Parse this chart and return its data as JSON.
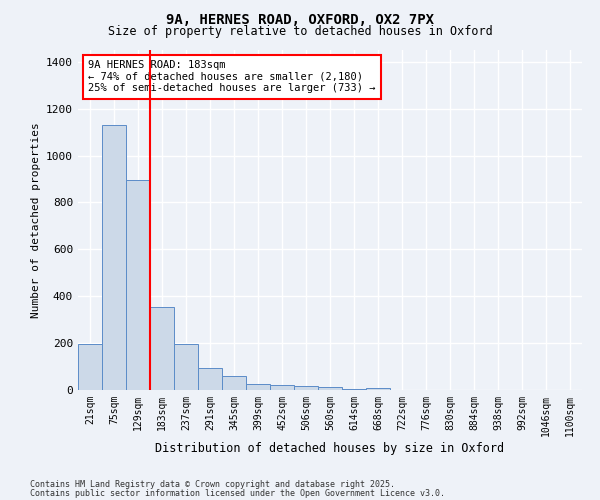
{
  "title1": "9A, HERNES ROAD, OXFORD, OX2 7PX",
  "title2": "Size of property relative to detached houses in Oxford",
  "xlabel": "Distribution of detached houses by size in Oxford",
  "ylabel": "Number of detached properties",
  "categories": [
    "21sqm",
    "75sqm",
    "129sqm",
    "183sqm",
    "237sqm",
    "291sqm",
    "345sqm",
    "399sqm",
    "452sqm",
    "506sqm",
    "560sqm",
    "614sqm",
    "668sqm",
    "722sqm",
    "776sqm",
    "830sqm",
    "884sqm",
    "938sqm",
    "992sqm",
    "1046sqm",
    "1100sqm"
  ],
  "values": [
    195,
    1130,
    895,
    355,
    195,
    95,
    60,
    25,
    20,
    15,
    12,
    5,
    10,
    0,
    0,
    0,
    0,
    0,
    0,
    0,
    0
  ],
  "bar_color": "#ccd9e8",
  "bar_edge_color": "#5b8cc8",
  "red_line_index": 3,
  "annotation_title": "9A HERNES ROAD: 183sqm",
  "annotation_line1": "← 74% of detached houses are smaller (2,180)",
  "annotation_line2": "25% of semi-detached houses are larger (733) →",
  "ylim": [
    0,
    1450
  ],
  "yticks": [
    0,
    200,
    400,
    600,
    800,
    1000,
    1200,
    1400
  ],
  "footer1": "Contains HM Land Registry data © Crown copyright and database right 2025.",
  "footer2": "Contains public sector information licensed under the Open Government Licence v3.0.",
  "bg_color": "#eef2f8",
  "grid_color": "#ffffff"
}
